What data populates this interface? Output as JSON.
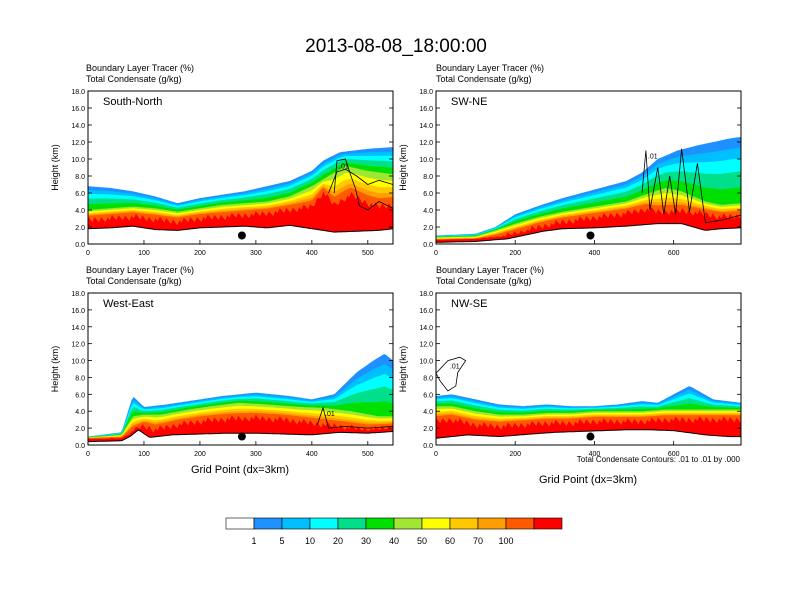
{
  "chart_data": {
    "type": "heatmap",
    "title": "2013-08-08_18:00:00",
    "field_labels": [
      "Boundary Layer Tracer   (%)",
      "Total Condensate   (g/kg)"
    ],
    "xlabel": "Grid Point (dx=3km)",
    "ylabel": "Height (km)",
    "ylim": [
      0,
      18
    ],
    "y_ticks": [
      "0.0",
      "2.0",
      "4.0",
      "6.0",
      "8.0",
      "10.0",
      "12.0",
      "14.0",
      "16.0",
      "18.0"
    ],
    "contour_note": "Total Condensate Contours: .01 to .01 by .000",
    "contour_label": ".01",
    "colorbar": {
      "levels": [
        "1",
        "5",
        "10",
        "20",
        "30",
        "40",
        "50",
        "60",
        "70",
        "100"
      ],
      "colors": [
        "#ffffff",
        "#1e90ff",
        "#00bfff",
        "#00ffff",
        "#00e08a",
        "#00e000",
        "#a0e632",
        "#ffff00",
        "#ffc800",
        "#ff9e00",
        "#ff5a00",
        "#ff0000"
      ]
    },
    "panels": [
      {
        "name": "South-North",
        "xlim": [
          0,
          545
        ],
        "x_ticks": [
          0,
          100,
          200,
          300,
          400,
          500
        ],
        "marker_x": 275,
        "terrain": [
          [
            0,
            1.8
          ],
          [
            40,
            1.9
          ],
          [
            80,
            2.1
          ],
          [
            120,
            1.7
          ],
          [
            160,
            1.6
          ],
          [
            200,
            1.9
          ],
          [
            240,
            2.0
          ],
          [
            280,
            2.1
          ],
          [
            320,
            1.9
          ],
          [
            360,
            2.2
          ],
          [
            400,
            1.8
          ],
          [
            440,
            1.4
          ],
          [
            480,
            1.5
          ],
          [
            520,
            1.6
          ],
          [
            545,
            1.8
          ]
        ],
        "top100": [
          [
            0,
            3.2
          ],
          [
            40,
            3.4
          ],
          [
            80,
            3.6
          ],
          [
            120,
            3.3
          ],
          [
            160,
            3.0
          ],
          [
            200,
            3.4
          ],
          [
            240,
            3.6
          ],
          [
            280,
            3.8
          ],
          [
            320,
            4.0
          ],
          [
            360,
            4.4
          ],
          [
            400,
            4.8
          ],
          [
            420,
            6.5
          ],
          [
            440,
            5.0
          ],
          [
            470,
            6.2
          ],
          [
            500,
            5.2
          ],
          [
            520,
            4.8
          ],
          [
            545,
            5.0
          ]
        ],
        "top50": [
          [
            0,
            4.0
          ],
          [
            40,
            4.2
          ],
          [
            80,
            4.4
          ],
          [
            120,
            4.2
          ],
          [
            160,
            3.8
          ],
          [
            200,
            4.2
          ],
          [
            240,
            4.6
          ],
          [
            280,
            4.8
          ],
          [
            320,
            5.0
          ],
          [
            360,
            5.6
          ],
          [
            400,
            6.8
          ],
          [
            430,
            8.0
          ],
          [
            460,
            9.2
          ],
          [
            500,
            8.6
          ],
          [
            545,
            8.2
          ]
        ],
        "top5": [
          [
            0,
            6.8
          ],
          [
            40,
            6.6
          ],
          [
            80,
            6.2
          ],
          [
            120,
            5.6
          ],
          [
            160,
            4.8
          ],
          [
            200,
            5.4
          ],
          [
            240,
            5.8
          ],
          [
            280,
            6.2
          ],
          [
            320,
            6.8
          ],
          [
            360,
            7.4
          ],
          [
            400,
            8.6
          ],
          [
            420,
            9.8
          ],
          [
            450,
            10.8
          ],
          [
            500,
            11.2
          ],
          [
            545,
            11.4
          ]
        ],
        "contours": [
          [
            [
              440,
              6.0
            ],
            [
              445,
              9.8
            ],
            [
              460,
              10.0
            ],
            [
              470,
              8.0
            ],
            [
              478,
              6.5
            ],
            [
              485,
              4.5
            ],
            [
              500,
              4.0
            ],
            [
              520,
              5.0
            ],
            [
              545,
              4.2
            ]
          ],
          [
            [
              430,
              6.0
            ],
            [
              445,
              8.5
            ],
            [
              460,
              8.8
            ],
            [
              480,
              8.0
            ],
            [
              500,
              7.0
            ],
            [
              520,
              7.5
            ],
            [
              545,
              7.0
            ]
          ]
        ]
      },
      {
        "name": "SW-NE",
        "xlim": [
          0,
          770
        ],
        "x_ticks": [
          0,
          200,
          400,
          600
        ],
        "marker_x": 390,
        "terrain": [
          [
            0,
            0.2
          ],
          [
            100,
            0.3
          ],
          [
            150,
            0.5
          ],
          [
            180,
            0.6
          ],
          [
            220,
            1.0
          ],
          [
            270,
            1.5
          ],
          [
            320,
            1.8
          ],
          [
            400,
            1.9
          ],
          [
            480,
            2.1
          ],
          [
            560,
            2.4
          ],
          [
            620,
            2.4
          ],
          [
            680,
            1.6
          ],
          [
            720,
            1.8
          ],
          [
            770,
            1.9
          ]
        ],
        "top100": [
          [
            0,
            0.5
          ],
          [
            100,
            0.6
          ],
          [
            150,
            1.0
          ],
          [
            200,
            1.6
          ],
          [
            260,
            2.4
          ],
          [
            320,
            3.0
          ],
          [
            400,
            3.5
          ],
          [
            480,
            4.0
          ],
          [
            530,
            4.5
          ],
          [
            560,
            4.2
          ],
          [
            620,
            4.3
          ],
          [
            680,
            3.9
          ],
          [
            720,
            3.6
          ],
          [
            770,
            3.7
          ]
        ],
        "top50": [
          [
            0,
            0.8
          ],
          [
            100,
            0.9
          ],
          [
            150,
            1.6
          ],
          [
            200,
            2.4
          ],
          [
            260,
            3.2
          ],
          [
            320,
            3.8
          ],
          [
            400,
            4.4
          ],
          [
            480,
            5.0
          ],
          [
            540,
            6.0
          ],
          [
            580,
            6.6
          ],
          [
            620,
            6.2
          ],
          [
            680,
            5.0
          ],
          [
            720,
            4.6
          ],
          [
            770,
            4.8
          ]
        ],
        "top5": [
          [
            0,
            1.0
          ],
          [
            100,
            1.2
          ],
          [
            150,
            2.0
          ],
          [
            200,
            3.5
          ],
          [
            260,
            4.5
          ],
          [
            320,
            5.4
          ],
          [
            400,
            6.4
          ],
          [
            480,
            7.4
          ],
          [
            520,
            8.4
          ],
          [
            560,
            10.0
          ],
          [
            610,
            11.0
          ],
          [
            660,
            11.6
          ],
          [
            700,
            12.0
          ],
          [
            740,
            12.4
          ],
          [
            770,
            12.6
          ]
        ],
        "contours": [
          [
            [
              520,
              6.0
            ],
            [
              530,
              11.0
            ],
            [
              540,
              4.0
            ],
            [
              560,
              9.0
            ],
            [
              575,
              3.5
            ],
            [
              590,
              8.0
            ],
            [
              605,
              3.5
            ],
            [
              620,
              11.2
            ],
            [
              640,
              3.8
            ],
            [
              660,
              9.5
            ],
            [
              680,
              2.5
            ],
            [
              720,
              2.8
            ],
            [
              770,
              3.4
            ]
          ]
        ]
      },
      {
        "name": "West-East",
        "xlim": [
          0,
          545
        ],
        "x_ticks": [
          0,
          100,
          200,
          300,
          400,
          500
        ],
        "marker_x": 275,
        "terrain": [
          [
            0,
            0.4
          ],
          [
            60,
            0.5
          ],
          [
            75,
            1.0
          ],
          [
            90,
            1.8
          ],
          [
            110,
            0.9
          ],
          [
            150,
            1.2
          ],
          [
            200,
            1.3
          ],
          [
            250,
            1.4
          ],
          [
            300,
            1.4
          ],
          [
            350,
            1.3
          ],
          [
            400,
            1.2
          ],
          [
            450,
            1.5
          ],
          [
            500,
            1.4
          ],
          [
            545,
            1.6
          ]
        ],
        "top100": [
          [
            0,
            0.8
          ],
          [
            60,
            0.9
          ],
          [
            80,
            2.0
          ],
          [
            100,
            2.6
          ],
          [
            120,
            2.2
          ],
          [
            160,
            2.8
          ],
          [
            200,
            3.2
          ],
          [
            250,
            3.5
          ],
          [
            300,
            3.6
          ],
          [
            350,
            3.4
          ],
          [
            400,
            3.0
          ],
          [
            450,
            2.6
          ],
          [
            500,
            2.2
          ],
          [
            545,
            2.4
          ]
        ],
        "top50": [
          [
            0,
            0.9
          ],
          [
            60,
            1.2
          ],
          [
            80,
            3.4
          ],
          [
            100,
            3.6
          ],
          [
            130,
            3.6
          ],
          [
            180,
            4.2
          ],
          [
            220,
            4.6
          ],
          [
            270,
            5.0
          ],
          [
            320,
            4.8
          ],
          [
            380,
            4.5
          ],
          [
            420,
            4.4
          ],
          [
            470,
            4.0
          ],
          [
            520,
            3.4
          ],
          [
            545,
            3.4
          ]
        ],
        "top5": [
          [
            0,
            1.0
          ],
          [
            60,
            1.5
          ],
          [
            80,
            5.8
          ],
          [
            100,
            4.5
          ],
          [
            140,
            4.8
          ],
          [
            180,
            5.2
          ],
          [
            240,
            5.8
          ],
          [
            300,
            6.2
          ],
          [
            360,
            5.8
          ],
          [
            400,
            5.4
          ],
          [
            440,
            6.0
          ],
          [
            480,
            8.6
          ],
          [
            510,
            10.0
          ],
          [
            530,
            10.8
          ],
          [
            545,
            10.0
          ]
        ],
        "contours": [
          [
            [
              410,
              2.4
            ],
            [
              420,
              4.4
            ],
            [
              430,
              2.0
            ],
            [
              460,
              2.2
            ],
            [
              500,
              2.0
            ],
            [
              545,
              2.2
            ]
          ]
        ]
      },
      {
        "name": "NW-SE",
        "xlim": [
          0,
          770
        ],
        "x_ticks": [
          0,
          200,
          400,
          600
        ],
        "marker_x": 390,
        "terrain": [
          [
            0,
            0.8
          ],
          [
            80,
            1.2
          ],
          [
            160,
            1.0
          ],
          [
            240,
            1.3
          ],
          [
            300,
            1.5
          ],
          [
            360,
            1.6
          ],
          [
            420,
            1.7
          ],
          [
            480,
            1.8
          ],
          [
            540,
            1.8
          ],
          [
            600,
            1.7
          ],
          [
            680,
            1.2
          ],
          [
            740,
            1.0
          ],
          [
            770,
            1.0
          ]
        ],
        "top100": [
          [
            0,
            3.2
          ],
          [
            40,
            3.4
          ],
          [
            100,
            2.8
          ],
          [
            160,
            2.6
          ],
          [
            220,
            2.8
          ],
          [
            280,
            3.0
          ],
          [
            340,
            3.0
          ],
          [
            400,
            3.2
          ],
          [
            460,
            3.2
          ],
          [
            520,
            3.2
          ],
          [
            580,
            3.4
          ],
          [
            640,
            3.4
          ],
          [
            700,
            3.4
          ],
          [
            770,
            3.4
          ]
        ],
        "top50": [
          [
            0,
            4.6
          ],
          [
            40,
            4.6
          ],
          [
            100,
            4.0
          ],
          [
            160,
            3.6
          ],
          [
            220,
            3.6
          ],
          [
            280,
            3.8
          ],
          [
            340,
            3.8
          ],
          [
            400,
            4.0
          ],
          [
            460,
            4.0
          ],
          [
            520,
            4.0
          ],
          [
            580,
            4.2
          ],
          [
            640,
            4.2
          ],
          [
            700,
            4.2
          ],
          [
            770,
            4.2
          ]
        ],
        "top5": [
          [
            0,
            5.8
          ],
          [
            40,
            6.0
          ],
          [
            100,
            5.4
          ],
          [
            160,
            4.8
          ],
          [
            220,
            4.6
          ],
          [
            280,
            4.8
          ],
          [
            340,
            4.6
          ],
          [
            400,
            4.6
          ],
          [
            460,
            4.8
          ],
          [
            520,
            5.2
          ],
          [
            560,
            5.0
          ],
          [
            600,
            6.0
          ],
          [
            640,
            7.0
          ],
          [
            700,
            5.4
          ],
          [
            770,
            5.0
          ]
        ],
        "contours": [
          [
            [
              0,
              8.5
            ],
            [
              30,
              10.0
            ],
            [
              60,
              10.4
            ],
            [
              75,
              10.0
            ],
            [
              55,
              8.6
            ],
            [
              50,
              7.0
            ],
            [
              30,
              6.4
            ],
            [
              10,
              7.6
            ],
            [
              0,
              8.5
            ]
          ]
        ]
      }
    ]
  }
}
